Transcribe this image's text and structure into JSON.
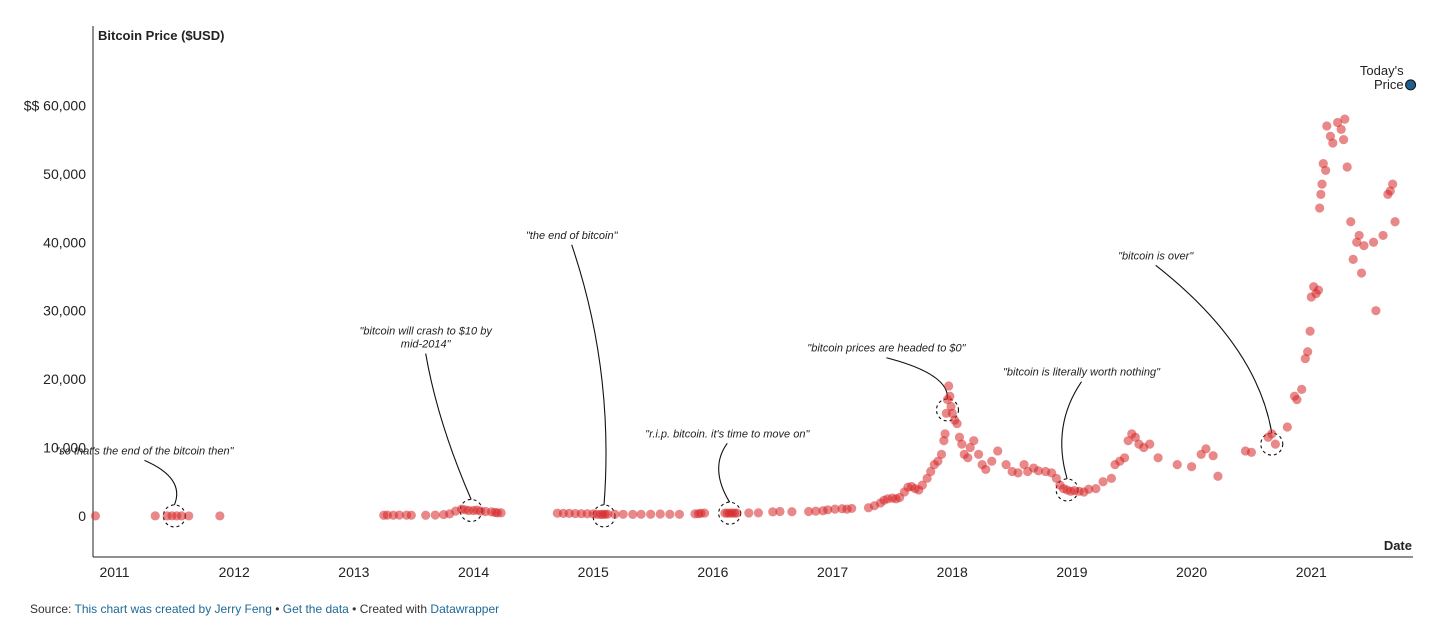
{
  "chart_data": {
    "type": "scatter",
    "ylabel": "Bitcoin Price ($USD)",
    "xlabel": "Date",
    "xlim": [
      2010.82,
      2021.85
    ],
    "ylim": [
      -6000,
      70000
    ],
    "x_ticks": [
      2011,
      2012,
      2013,
      2014,
      2015,
      2016,
      2017,
      2018,
      2019,
      2020,
      2021
    ],
    "x_tick_labels": [
      "2011",
      "2012",
      "2013",
      "2014",
      "2015",
      "2016",
      "2017",
      "2018",
      "2019",
      "2020",
      "2021"
    ],
    "y_ticks": [
      0,
      10000,
      20000,
      30000,
      40000,
      50000,
      60000
    ],
    "y_tick_labels": [
      "0",
      "10,000",
      "20,000",
      "30,000",
      "40,000",
      "50,000",
      "$$ 60,000"
    ],
    "grid": false,
    "point_color": "#d62728",
    "today_color": "#1f5f8b",
    "series": [
      {
        "points": [
          [
            2010.84,
            10
          ],
          [
            2011.34,
            8
          ],
          [
            2011.44,
            15
          ],
          [
            2011.48,
            20
          ],
          [
            2011.52,
            14
          ],
          [
            2011.56,
            10
          ],
          [
            2011.62,
            5
          ],
          [
            2011.88,
            3
          ],
          [
            2013.25,
            100
          ],
          [
            2013.28,
            120
          ],
          [
            2013.33,
            110
          ],
          [
            2013.38,
            130
          ],
          [
            2013.44,
            120
          ],
          [
            2013.48,
            110
          ],
          [
            2013.6,
            100
          ],
          [
            2013.68,
            130
          ],
          [
            2013.75,
            200
          ],
          [
            2013.8,
            300
          ],
          [
            2013.85,
            700
          ],
          [
            2013.9,
            1000
          ],
          [
            2013.93,
            900
          ],
          [
            2013.96,
            800
          ],
          [
            2014.0,
            800
          ],
          [
            2014.03,
            850
          ],
          [
            2014.06,
            700
          ],
          [
            2014.1,
            650
          ],
          [
            2014.15,
            600
          ],
          [
            2014.18,
            500
          ],
          [
            2014.2,
            450
          ],
          [
            2014.23,
            450
          ],
          [
            2014.7,
            400
          ],
          [
            2014.75,
            380
          ],
          [
            2014.8,
            380
          ],
          [
            2014.85,
            350
          ],
          [
            2014.9,
            330
          ],
          [
            2014.95,
            320
          ],
          [
            2015.0,
            300
          ],
          [
            2015.03,
            250
          ],
          [
            2015.06,
            220
          ],
          [
            2015.08,
            230
          ],
          [
            2015.1,
            240
          ],
          [
            2015.12,
            260
          ],
          [
            2015.18,
            250
          ],
          [
            2015.25,
            240
          ],
          [
            2015.33,
            230
          ],
          [
            2015.4,
            240
          ],
          [
            2015.48,
            250
          ],
          [
            2015.56,
            280
          ],
          [
            2015.64,
            250
          ],
          [
            2015.72,
            240
          ],
          [
            2015.85,
            300
          ],
          [
            2015.88,
            330
          ],
          [
            2015.9,
            400
          ],
          [
            2015.93,
            420
          ],
          [
            2016.1,
            420
          ],
          [
            2016.12,
            410
          ],
          [
            2016.14,
            400
          ],
          [
            2016.16,
            430
          ],
          [
            2016.18,
            420
          ],
          [
            2016.2,
            420
          ],
          [
            2016.3,
            440
          ],
          [
            2016.38,
            450
          ],
          [
            2016.5,
            600
          ],
          [
            2016.56,
            650
          ],
          [
            2016.66,
            620
          ],
          [
            2016.8,
            650
          ],
          [
            2016.86,
            700
          ],
          [
            2016.92,
            760
          ],
          [
            2016.96,
            900
          ],
          [
            2017.02,
            1000
          ],
          [
            2017.08,
            1050
          ],
          [
            2017.12,
            1000
          ],
          [
            2017.16,
            1100
          ],
          [
            2017.3,
            1200
          ],
          [
            2017.35,
            1500
          ],
          [
            2017.4,
            1900
          ],
          [
            2017.43,
            2300
          ],
          [
            2017.46,
            2500
          ],
          [
            2017.5,
            2600
          ],
          [
            2017.53,
            2500
          ],
          [
            2017.56,
            2700
          ],
          [
            2017.6,
            3500
          ],
          [
            2017.63,
            4200
          ],
          [
            2017.66,
            4300
          ],
          [
            2017.69,
            4000
          ],
          [
            2017.72,
            3800
          ],
          [
            2017.75,
            4500
          ],
          [
            2017.79,
            5500
          ],
          [
            2017.82,
            6500
          ],
          [
            2017.85,
            7500
          ],
          [
            2017.88,
            8000
          ],
          [
            2017.91,
            9000
          ],
          [
            2017.93,
            11000
          ],
          [
            2017.94,
            12000
          ],
          [
            2017.95,
            15000
          ],
          [
            2017.96,
            17000
          ],
          [
            2017.97,
            19000
          ],
          [
            2017.98,
            17500
          ],
          [
            2017.99,
            16000
          ],
          [
            2018.0,
            15000
          ],
          [
            2018.02,
            14000
          ],
          [
            2018.04,
            13500
          ],
          [
            2018.06,
            11500
          ],
          [
            2018.08,
            10500
          ],
          [
            2018.1,
            9000
          ],
          [
            2018.13,
            8500
          ],
          [
            2018.15,
            10000
          ],
          [
            2018.18,
            11000
          ],
          [
            2018.22,
            9000
          ],
          [
            2018.25,
            7500
          ],
          [
            2018.28,
            6800
          ],
          [
            2018.33,
            8000
          ],
          [
            2018.38,
            9500
          ],
          [
            2018.45,
            7500
          ],
          [
            2018.5,
            6500
          ],
          [
            2018.55,
            6300
          ],
          [
            2018.6,
            7500
          ],
          [
            2018.63,
            6500
          ],
          [
            2018.68,
            7000
          ],
          [
            2018.72,
            6600
          ],
          [
            2018.78,
            6500
          ],
          [
            2018.83,
            6300
          ],
          [
            2018.87,
            5500
          ],
          [
            2018.9,
            4500
          ],
          [
            2018.93,
            4000
          ],
          [
            2018.96,
            3800
          ],
          [
            2018.99,
            3600
          ],
          [
            2019.02,
            3700
          ],
          [
            2019.06,
            3600
          ],
          [
            2019.1,
            3500
          ],
          [
            2019.14,
            3900
          ],
          [
            2019.2,
            4000
          ],
          [
            2019.26,
            5000
          ],
          [
            2019.33,
            5500
          ],
          [
            2019.36,
            7500
          ],
          [
            2019.4,
            8000
          ],
          [
            2019.44,
            8500
          ],
          [
            2019.47,
            11000
          ],
          [
            2019.5,
            12000
          ],
          [
            2019.53,
            11500
          ],
          [
            2019.56,
            10500
          ],
          [
            2019.6,
            10000
          ],
          [
            2019.65,
            10500
          ],
          [
            2019.72,
            8500
          ],
          [
            2019.88,
            7500
          ],
          [
            2020.0,
            7200
          ],
          [
            2020.08,
            9000
          ],
          [
            2020.12,
            9800
          ],
          [
            2020.18,
            8800
          ],
          [
            2020.22,
            5800
          ],
          [
            2020.45,
            9500
          ],
          [
            2020.5,
            9300
          ],
          [
            2020.64,
            11500
          ],
          [
            2020.67,
            12000
          ],
          [
            2020.7,
            10500
          ],
          [
            2020.8,
            13000
          ],
          [
            2020.86,
            17500
          ],
          [
            2020.88,
            17000
          ],
          [
            2020.92,
            18500
          ],
          [
            2020.95,
            23000
          ],
          [
            2020.97,
            24000
          ],
          [
            2020.99,
            27000
          ],
          [
            2021.0,
            32000
          ],
          [
            2021.02,
            33500
          ],
          [
            2021.04,
            32500
          ],
          [
            2021.06,
            33000
          ],
          [
            2021.07,
            45000
          ],
          [
            2021.08,
            47000
          ],
          [
            2021.09,
            48500
          ],
          [
            2021.1,
            51500
          ],
          [
            2021.12,
            50500
          ],
          [
            2021.13,
            57000
          ],
          [
            2021.16,
            55500
          ],
          [
            2021.18,
            54500
          ],
          [
            2021.22,
            57500
          ],
          [
            2021.25,
            56500
          ],
          [
            2021.27,
            55000
          ],
          [
            2021.28,
            58000
          ],
          [
            2021.3,
            51000
          ],
          [
            2021.33,
            43000
          ],
          [
            2021.35,
            37500
          ],
          [
            2021.38,
            40000
          ],
          [
            2021.4,
            41000
          ],
          [
            2021.42,
            35500
          ],
          [
            2021.44,
            39500
          ],
          [
            2021.52,
            40000
          ],
          [
            2021.54,
            30000
          ],
          [
            2021.6,
            41000
          ],
          [
            2021.64,
            47000
          ],
          [
            2021.66,
            47500
          ],
          [
            2021.68,
            48500
          ],
          [
            2021.7,
            43000
          ]
        ]
      }
    ],
    "today": {
      "x": 2021.83,
      "y": 63000,
      "label_line1": "Today's",
      "label_line2": "Price"
    },
    "annotations": [
      {
        "text": [
          "\"so that's the end of the bitcoin then\""
        ],
        "target": [
          2011.5,
          0
        ],
        "text_anchor": [
          2011.25,
          9000
        ]
      },
      {
        "text": [
          "\"bitcoin will crash to $10 by",
          "mid-2014\""
        ],
        "target": [
          2013.98,
          800
        ],
        "text_anchor": [
          2013.6,
          26500
        ]
      },
      {
        "text": [
          "\"the end of bitcoin\""
        ],
        "target": [
          2015.09,
          0
        ],
        "text_anchor": [
          2014.82,
          40500
        ]
      },
      {
        "text": [
          "\"r.i.p. bitcoin. it's time to move on\""
        ],
        "target": [
          2016.14,
          400
        ],
        "text_anchor": [
          2016.12,
          11500
        ]
      },
      {
        "text": [
          "\"bitcoin prices are headed to $0\""
        ],
        "target": [
          2017.96,
          15500
        ],
        "text_anchor": [
          2017.45,
          24000
        ]
      },
      {
        "text": [
          "\"bitcoin is literally worth nothing\""
        ],
        "target": [
          2018.96,
          3800
        ],
        "text_anchor": [
          2019.08,
          20500
        ]
      },
      {
        "text": [
          "\"bitcoin is over\""
        ],
        "target": [
          2020.67,
          10500
        ],
        "text_anchor": [
          2019.7,
          37500
        ]
      }
    ]
  },
  "footer": {
    "source_prefix": "Source: ",
    "source_link": "This chart was created by Jerry Feng",
    "sep1": " • ",
    "data_link": "Get the data",
    "sep2": " • Created with ",
    "tool_link": "Datawrapper"
  }
}
